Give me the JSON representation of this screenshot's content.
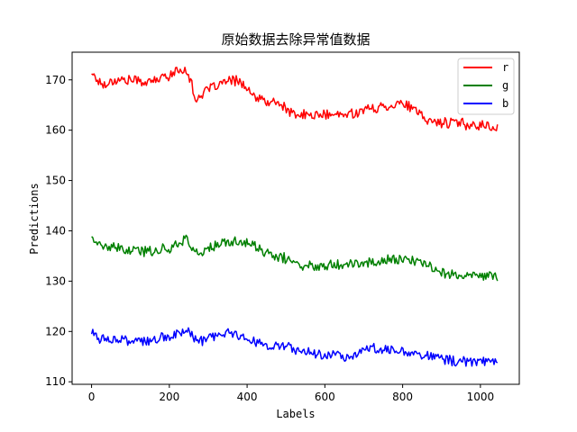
{
  "chart_data": {
    "type": "line",
    "title": "原始数据去除异常值数据",
    "xlabel": "Labels",
    "ylabel": "Predictions",
    "xlim": [
      -50,
      1100
    ],
    "ylim": [
      109.5,
      175.5
    ],
    "xticks": [
      0,
      200,
      400,
      600,
      800,
      1000
    ],
    "yticks": [
      110,
      120,
      130,
      140,
      150,
      160,
      170
    ],
    "grid": false,
    "legend_position": "top-right",
    "noise_amplitude": 0.9,
    "series": [
      {
        "name": "r",
        "color": "#ff0000",
        "x": [
          0,
          15,
          30,
          60,
          100,
          150,
          200,
          230,
          245,
          255,
          265,
          280,
          300,
          340,
          380,
          410,
          450,
          480,
          520,
          560,
          600,
          650,
          700,
          740,
          800,
          830,
          860,
          900,
          940,
          980,
          1010,
          1045
        ],
        "y": [
          171.5,
          170,
          169,
          170,
          170,
          169.5,
          171,
          172,
          172,
          170,
          166,
          167,
          168,
          169.5,
          170,
          167,
          165.5,
          165.5,
          163,
          163,
          163,
          163,
          164,
          164.5,
          165.5,
          164,
          162,
          161.5,
          161.5,
          161,
          161,
          160.5
        ]
      },
      {
        "name": "g",
        "color": "#008000",
        "x": [
          0,
          20,
          60,
          100,
          150,
          200,
          230,
          245,
          260,
          280,
          300,
          340,
          380,
          420,
          460,
          500,
          540,
          570,
          620,
          700,
          740,
          800,
          850,
          900,
          940,
          1000,
          1045
        ],
        "y": [
          139,
          137,
          136.5,
          136,
          136,
          136.5,
          138,
          138.5,
          136,
          135.5,
          136.5,
          137.5,
          138,
          137,
          135,
          134.5,
          133,
          133,
          133.5,
          133.5,
          134,
          134.5,
          133.5,
          132,
          131,
          131,
          131
        ]
      },
      {
        "name": "b",
        "color": "#0000ff",
        "x": [
          0,
          20,
          60,
          100,
          150,
          200,
          230,
          250,
          270,
          300,
          340,
          380,
          420,
          460,
          500,
          540,
          580,
          620,
          660,
          700,
          760,
          800,
          860,
          900,
          950,
          1000,
          1045
        ],
        "y": [
          120,
          118.5,
          118.5,
          118,
          118,
          119,
          120,
          120,
          118,
          118.5,
          119.5,
          119.5,
          118,
          117,
          117,
          116,
          115.5,
          115.5,
          115,
          116.5,
          116.5,
          116,
          115.5,
          114.5,
          114,
          114,
          114
        ]
      }
    ]
  }
}
